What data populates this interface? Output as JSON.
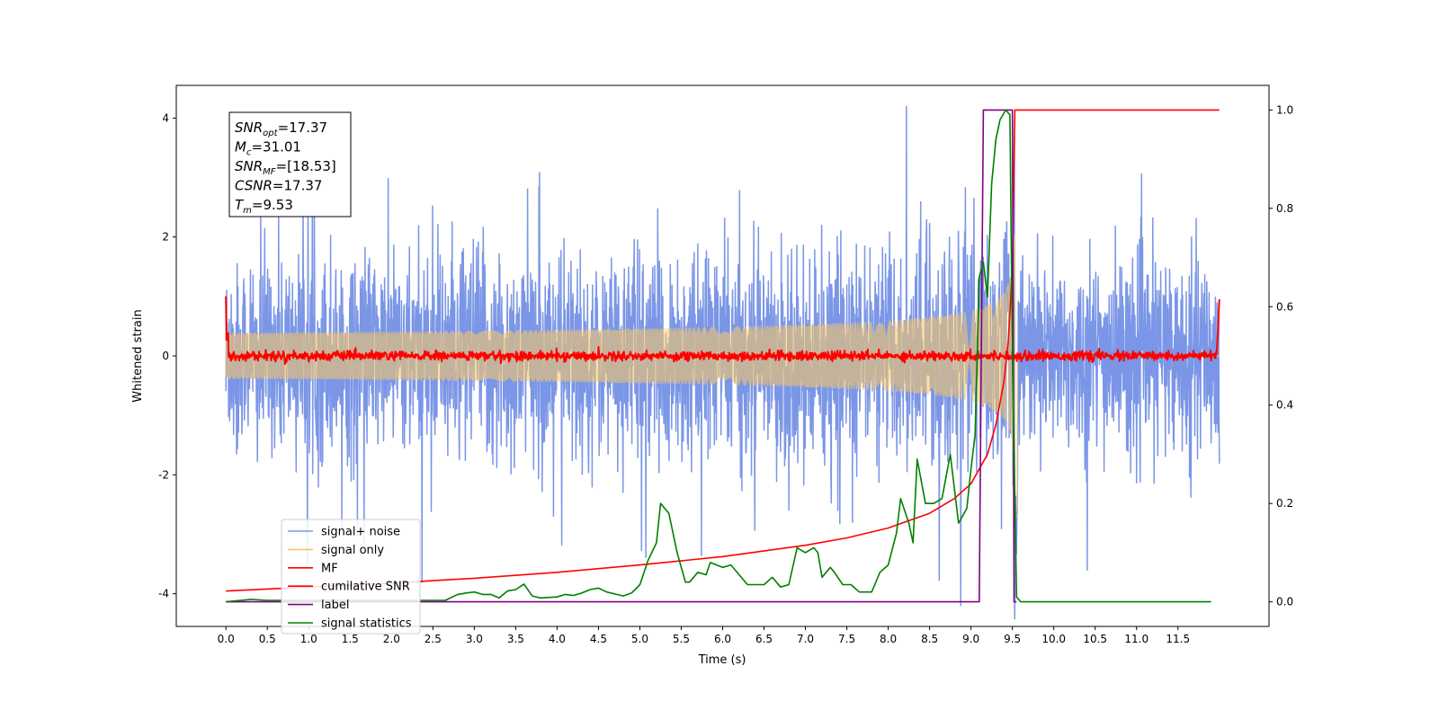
{
  "chart_data": {
    "type": "line",
    "xlabel": "Time (s)",
    "ylabel": "Whitened strain",
    "xlim": [
      -0.6,
      12.6
    ],
    "ylim": [
      -4.55,
      4.55
    ],
    "y2lim": [
      -0.05,
      1.05
    ],
    "xticks": [
      "0.0",
      "0.5",
      "1.0",
      "1.5",
      "2.0",
      "2.5",
      "3.0",
      "3.5",
      "4.0",
      "4.5",
      "5.0",
      "5.5",
      "6.0",
      "6.5",
      "7.0",
      "7.5",
      "8.0",
      "8.5",
      "9.0",
      "9.5",
      "10.0",
      "10.5",
      "11.0",
      "11.5"
    ],
    "yticks": [
      "-4",
      "-2",
      "0",
      "2",
      "4"
    ],
    "y2ticks": [
      "0.0",
      "0.2",
      "0.4",
      "0.6",
      "0.8",
      "1.0"
    ],
    "annotation": {
      "lines": [
        {
          "main": "SNR",
          "sub": "opt",
          "rest": "=17.37"
        },
        {
          "main": "M",
          "sub": "c",
          "rest": "=31.01"
        },
        {
          "main": "SNR",
          "sub": "MF",
          "rest": "=[18.53]"
        },
        {
          "main": "CSNR",
          "sub": "",
          "rest": "=17.37"
        },
        {
          "main": "T",
          "sub": "m",
          "rest": "=9.53"
        }
      ]
    },
    "legend_position": "lower-left",
    "series": [
      {
        "name": "signal+ noise",
        "color": "#7b96e6",
        "axis": "left",
        "kind": "noise",
        "std": 0.8,
        "duration": 12.0
      },
      {
        "name": "signal only",
        "color": "#f5c66b",
        "axis": "left",
        "kind": "chirp",
        "merger_time": 9.53,
        "peak_amplitude": 3.0
      },
      {
        "name": "MF",
        "color": "#ff0000",
        "axis": "left",
        "kind": "mf",
        "std": 0.04
      },
      {
        "name": "cumilative SNR",
        "color": "#ff0000",
        "axis": "right",
        "x": [
          0,
          1,
          2,
          3,
          4,
          5,
          6,
          7,
          7.5,
          8,
          8.5,
          8.8,
          9.0,
          9.2,
          9.3,
          9.4,
          9.45,
          9.5,
          9.53,
          12.0
        ],
        "y": [
          0.022,
          0.03,
          0.038,
          0.048,
          0.06,
          0.075,
          0.092,
          0.115,
          0.13,
          0.15,
          0.18,
          0.21,
          0.24,
          0.3,
          0.36,
          0.45,
          0.53,
          0.68,
          1.0,
          1.0
        ]
      },
      {
        "name": "label",
        "color": "#800080",
        "axis": "right",
        "x": [
          0,
          9.1,
          9.15,
          9.5,
          9.52,
          9.55
        ],
        "y": [
          0,
          0,
          1,
          1,
          0,
          0
        ]
      },
      {
        "name": "signal statistics",
        "color": "#008000",
        "axis": "right",
        "x": [
          0,
          0.3,
          0.5,
          1.0,
          1.5,
          2.0,
          2.5,
          2.65,
          2.8,
          2.9,
          3.0,
          3.1,
          3.2,
          3.3,
          3.4,
          3.5,
          3.6,
          3.7,
          3.8,
          4.0,
          4.1,
          4.2,
          4.3,
          4.4,
          4.5,
          4.6,
          4.8,
          4.9,
          5.0,
          5.1,
          5.2,
          5.25,
          5.35,
          5.45,
          5.55,
          5.6,
          5.7,
          5.8,
          5.85,
          6.0,
          6.1,
          6.2,
          6.3,
          6.5,
          6.6,
          6.7,
          6.8,
          6.9,
          7.0,
          7.1,
          7.15,
          7.2,
          7.3,
          7.35,
          7.45,
          7.55,
          7.65,
          7.8,
          7.9,
          8.0,
          8.1,
          8.15,
          8.25,
          8.3,
          8.35,
          8.45,
          8.55,
          8.65,
          8.75,
          8.85,
          8.95,
          9.0,
          9.05,
          9.1,
          9.15,
          9.2,
          9.25,
          9.3,
          9.35,
          9.42,
          9.47,
          9.5,
          9.55,
          9.6,
          11.9
        ],
        "y": [
          0,
          0.005,
          0.003,
          0.003,
          0.003,
          0.003,
          0.003,
          0.003,
          0.015,
          0.018,
          0.02,
          0.015,
          0.015,
          0.008,
          0.022,
          0.025,
          0.036,
          0.012,
          0.008,
          0.01,
          0.015,
          0.013,
          0.018,
          0.025,
          0.028,
          0.02,
          0.012,
          0.018,
          0.035,
          0.085,
          0.12,
          0.2,
          0.18,
          0.1,
          0.04,
          0.04,
          0.06,
          0.055,
          0.08,
          0.07,
          0.075,
          0.055,
          0.035,
          0.035,
          0.05,
          0.03,
          0.035,
          0.11,
          0.1,
          0.11,
          0.1,
          0.05,
          0.07,
          0.06,
          0.035,
          0.035,
          0.02,
          0.02,
          0.06,
          0.075,
          0.14,
          0.21,
          0.16,
          0.12,
          0.29,
          0.2,
          0.2,
          0.21,
          0.3,
          0.16,
          0.19,
          0.27,
          0.34,
          0.66,
          0.69,
          0.62,
          0.85,
          0.94,
          0.98,
          1.0,
          0.99,
          0.5,
          0.01,
          0.0,
          0.0
        ]
      }
    ]
  }
}
